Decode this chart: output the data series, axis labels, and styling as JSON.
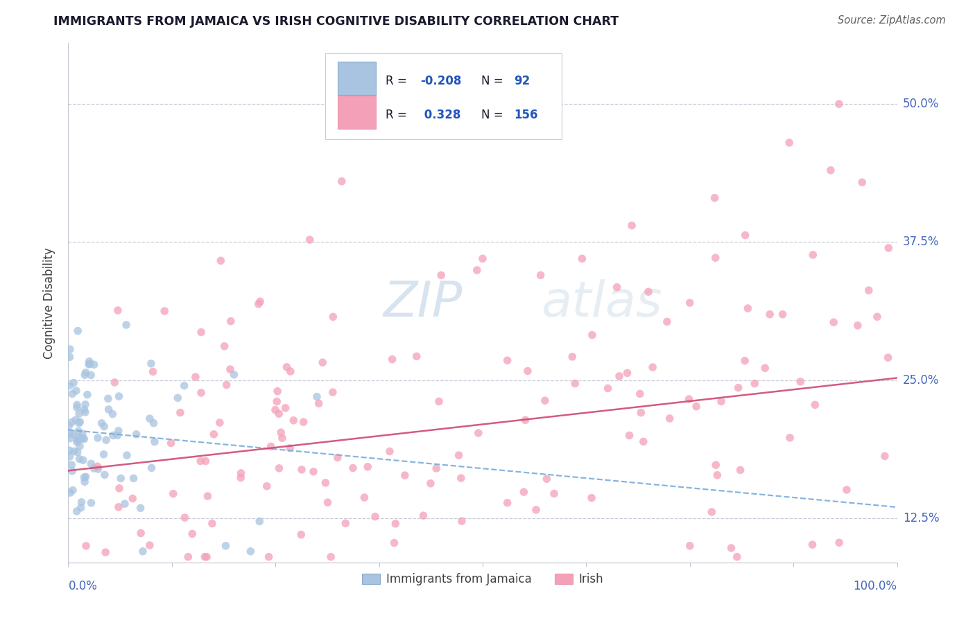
{
  "title": "IMMIGRANTS FROM JAMAICA VS IRISH COGNITIVE DISABILITY CORRELATION CHART",
  "source": "Source: ZipAtlas.com",
  "ylabel": "Cognitive Disability",
  "yticks": [
    0.125,
    0.25,
    0.375,
    0.5
  ],
  "ytick_labels": [
    "12.5%",
    "25.0%",
    "37.5%",
    "50.0%"
  ],
  "color_jamaica": "#a8c4e0",
  "color_irish": "#f4a0b8",
  "color_line_jamaica": "#90afd0",
  "color_line_irish": "#d04870",
  "background_color": "#ffffff",
  "xlim": [
    0.0,
    1.0
  ],
  "ylim": [
    0.085,
    0.555
  ],
  "legend_text_color": "#2255aa",
  "legend_label_color": "#404040",
  "ytick_color": "#4466bb",
  "xtick_color": "#4466bb"
}
